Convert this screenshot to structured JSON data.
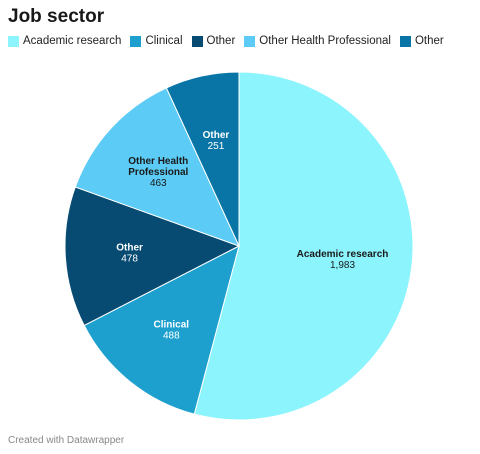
{
  "chart_data": {
    "type": "pie",
    "title": "Job sector",
    "slices": [
      {
        "label": "Academic research",
        "value": 1983,
        "value_text": "1,983",
        "color": "#8cf4fc",
        "label_color": "#1a1a1a"
      },
      {
        "label": "Clinical",
        "value": 488,
        "value_text": "488",
        "color": "#1ea0cf",
        "label_color": "#ffffff"
      },
      {
        "label": "Other",
        "value": 478,
        "value_text": "478",
        "color": "#074a72",
        "label_color": "#ffffff"
      },
      {
        "label": "Other Health Professional",
        "value": 463,
        "value_text": "463",
        "color": "#5ccbf5",
        "label_color": "#1a1a1a"
      },
      {
        "label": "Other",
        "value": 251,
        "value_text": "251",
        "color": "#0875a6",
        "label_color": "#ffffff"
      }
    ],
    "legend_position": "top-left"
  },
  "footer": "Created with Datawrapper"
}
